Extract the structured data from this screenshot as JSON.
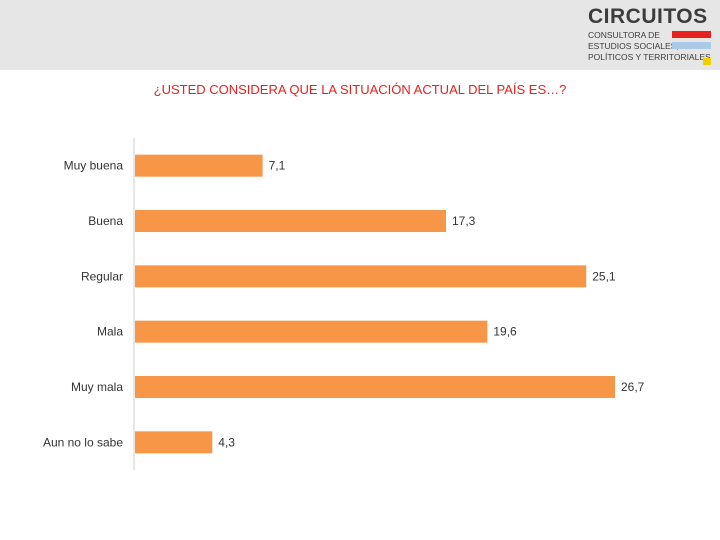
{
  "brand": {
    "name": "CIRCUITOS",
    "tagline": [
      "CONSULTORA DE",
      "ESTUDIOS SOCIALES,",
      "POLÍTICOS Y TERRITORIALES"
    ],
    "bar_colors": [
      "#e8201e",
      "#a9cbe8",
      "#f5d000"
    ]
  },
  "colors": {
    "header_background": "#e6e6e6",
    "title": "#e8201e",
    "bar": "#f79646",
    "axis": "#cfcfcf",
    "text": "#333333"
  },
  "chart_data": {
    "type": "bar",
    "orientation": "horizontal",
    "title": "¿USTED CONSIDERA QUE LA SITUACIÓN ACTUAL DEL PAÍS ES…?",
    "categories": [
      "Muy buena",
      "Buena",
      "Regular",
      "Mala",
      "Muy mala",
      "Aun no lo sabe"
    ],
    "values": [
      7.1,
      17.3,
      25.1,
      19.6,
      26.7,
      4.3
    ],
    "value_labels": [
      "7,1",
      "17,3",
      "25,1",
      "19,6",
      "26,7",
      "4,3"
    ],
    "xlim": [
      0,
      26.7
    ],
    "xlabel": "",
    "ylabel": "",
    "grid": false,
    "legend": "none"
  }
}
